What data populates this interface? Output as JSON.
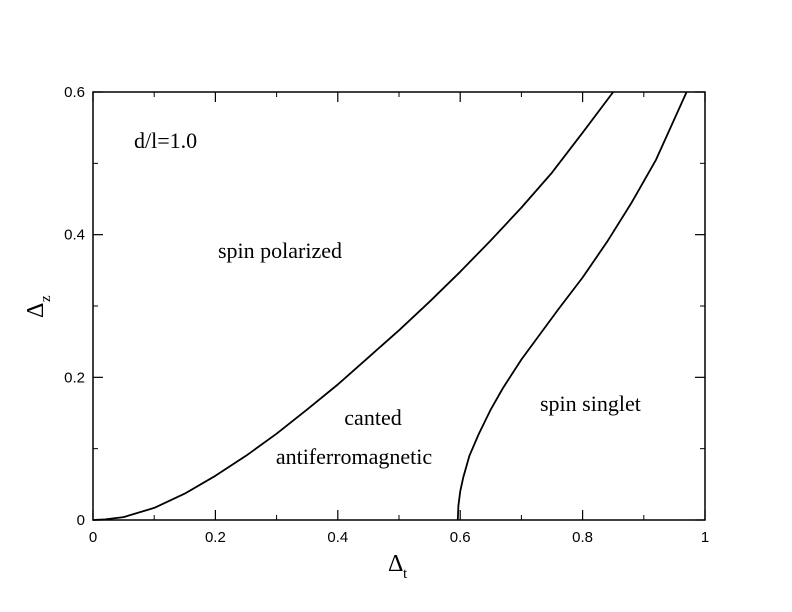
{
  "chart_data": {
    "type": "line",
    "xlabel": "Δ",
    "xlabel_sub": "t",
    "ylabel": "Δ",
    "ylabel_sub": "z",
    "xlim": [
      0,
      1
    ],
    "ylim": [
      0,
      0.6
    ],
    "x_ticks": [
      "0",
      "0.2",
      "0.4",
      "0.6",
      "0.8",
      "1"
    ],
    "y_ticks": [
      "0",
      "0.2",
      "0.4",
      "0.6"
    ],
    "grid": false,
    "annotations": {
      "param": "d/l=1.0",
      "spin_polarized": "spin polarized",
      "canted_line1": "canted",
      "canted_line2": "antiferromagnetic",
      "spin_singlet": "spin singlet"
    },
    "series": [
      {
        "x": [
          0.0,
          0.02,
          0.05,
          0.1,
          0.15,
          0.2,
          0.25,
          0.3,
          0.35,
          0.4,
          0.45,
          0.5,
          0.55,
          0.6,
          0.65,
          0.7,
          0.75,
          0.8,
          0.85
        ],
        "y": [
          0.0,
          0.0008,
          0.004,
          0.017,
          0.037,
          0.062,
          0.09,
          0.121,
          0.155,
          0.19,
          0.228,
          0.266,
          0.306,
          0.348,
          0.392,
          0.438,
          0.487,
          0.543,
          0.6
        ]
      },
      {
        "x": [
          0.596,
          0.597,
          0.6,
          0.605,
          0.615,
          0.63,
          0.65,
          0.67,
          0.7,
          0.73,
          0.76,
          0.8,
          0.84,
          0.88,
          0.92,
          0.97
        ],
        "y": [
          0.0,
          0.02,
          0.04,
          0.06,
          0.09,
          0.12,
          0.155,
          0.185,
          0.225,
          0.26,
          0.295,
          0.34,
          0.39,
          0.445,
          0.505,
          0.6
        ]
      }
    ]
  }
}
